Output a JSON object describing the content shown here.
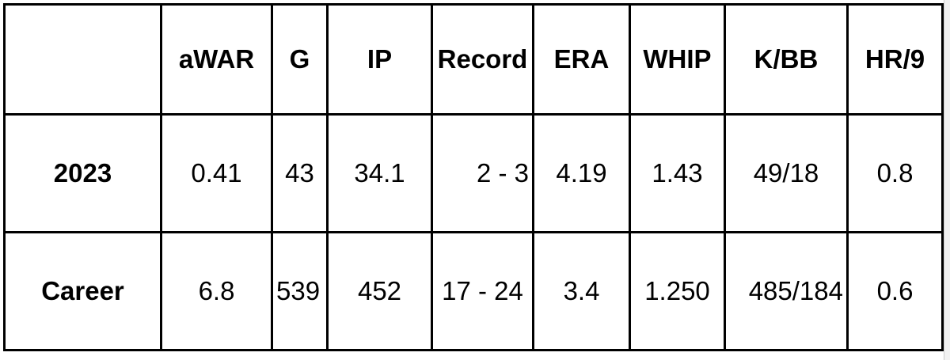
{
  "table": {
    "header": [
      "aWAR",
      "G",
      "IP",
      "Record",
      "ERA",
      "WHIP",
      "K/BB",
      "HR/9"
    ],
    "rows": [
      {
        "label": "2023",
        "cells": [
          "0.41",
          "43",
          "34.1",
          "2 - 3",
          "4.19",
          "1.43",
          "49/18",
          "0.8"
        ]
      },
      {
        "label": "Career",
        "cells": [
          "6.8",
          "539",
          "452",
          "17 - 24",
          "3.4",
          "1.250",
          "485/184",
          "0.6"
        ]
      }
    ]
  }
}
